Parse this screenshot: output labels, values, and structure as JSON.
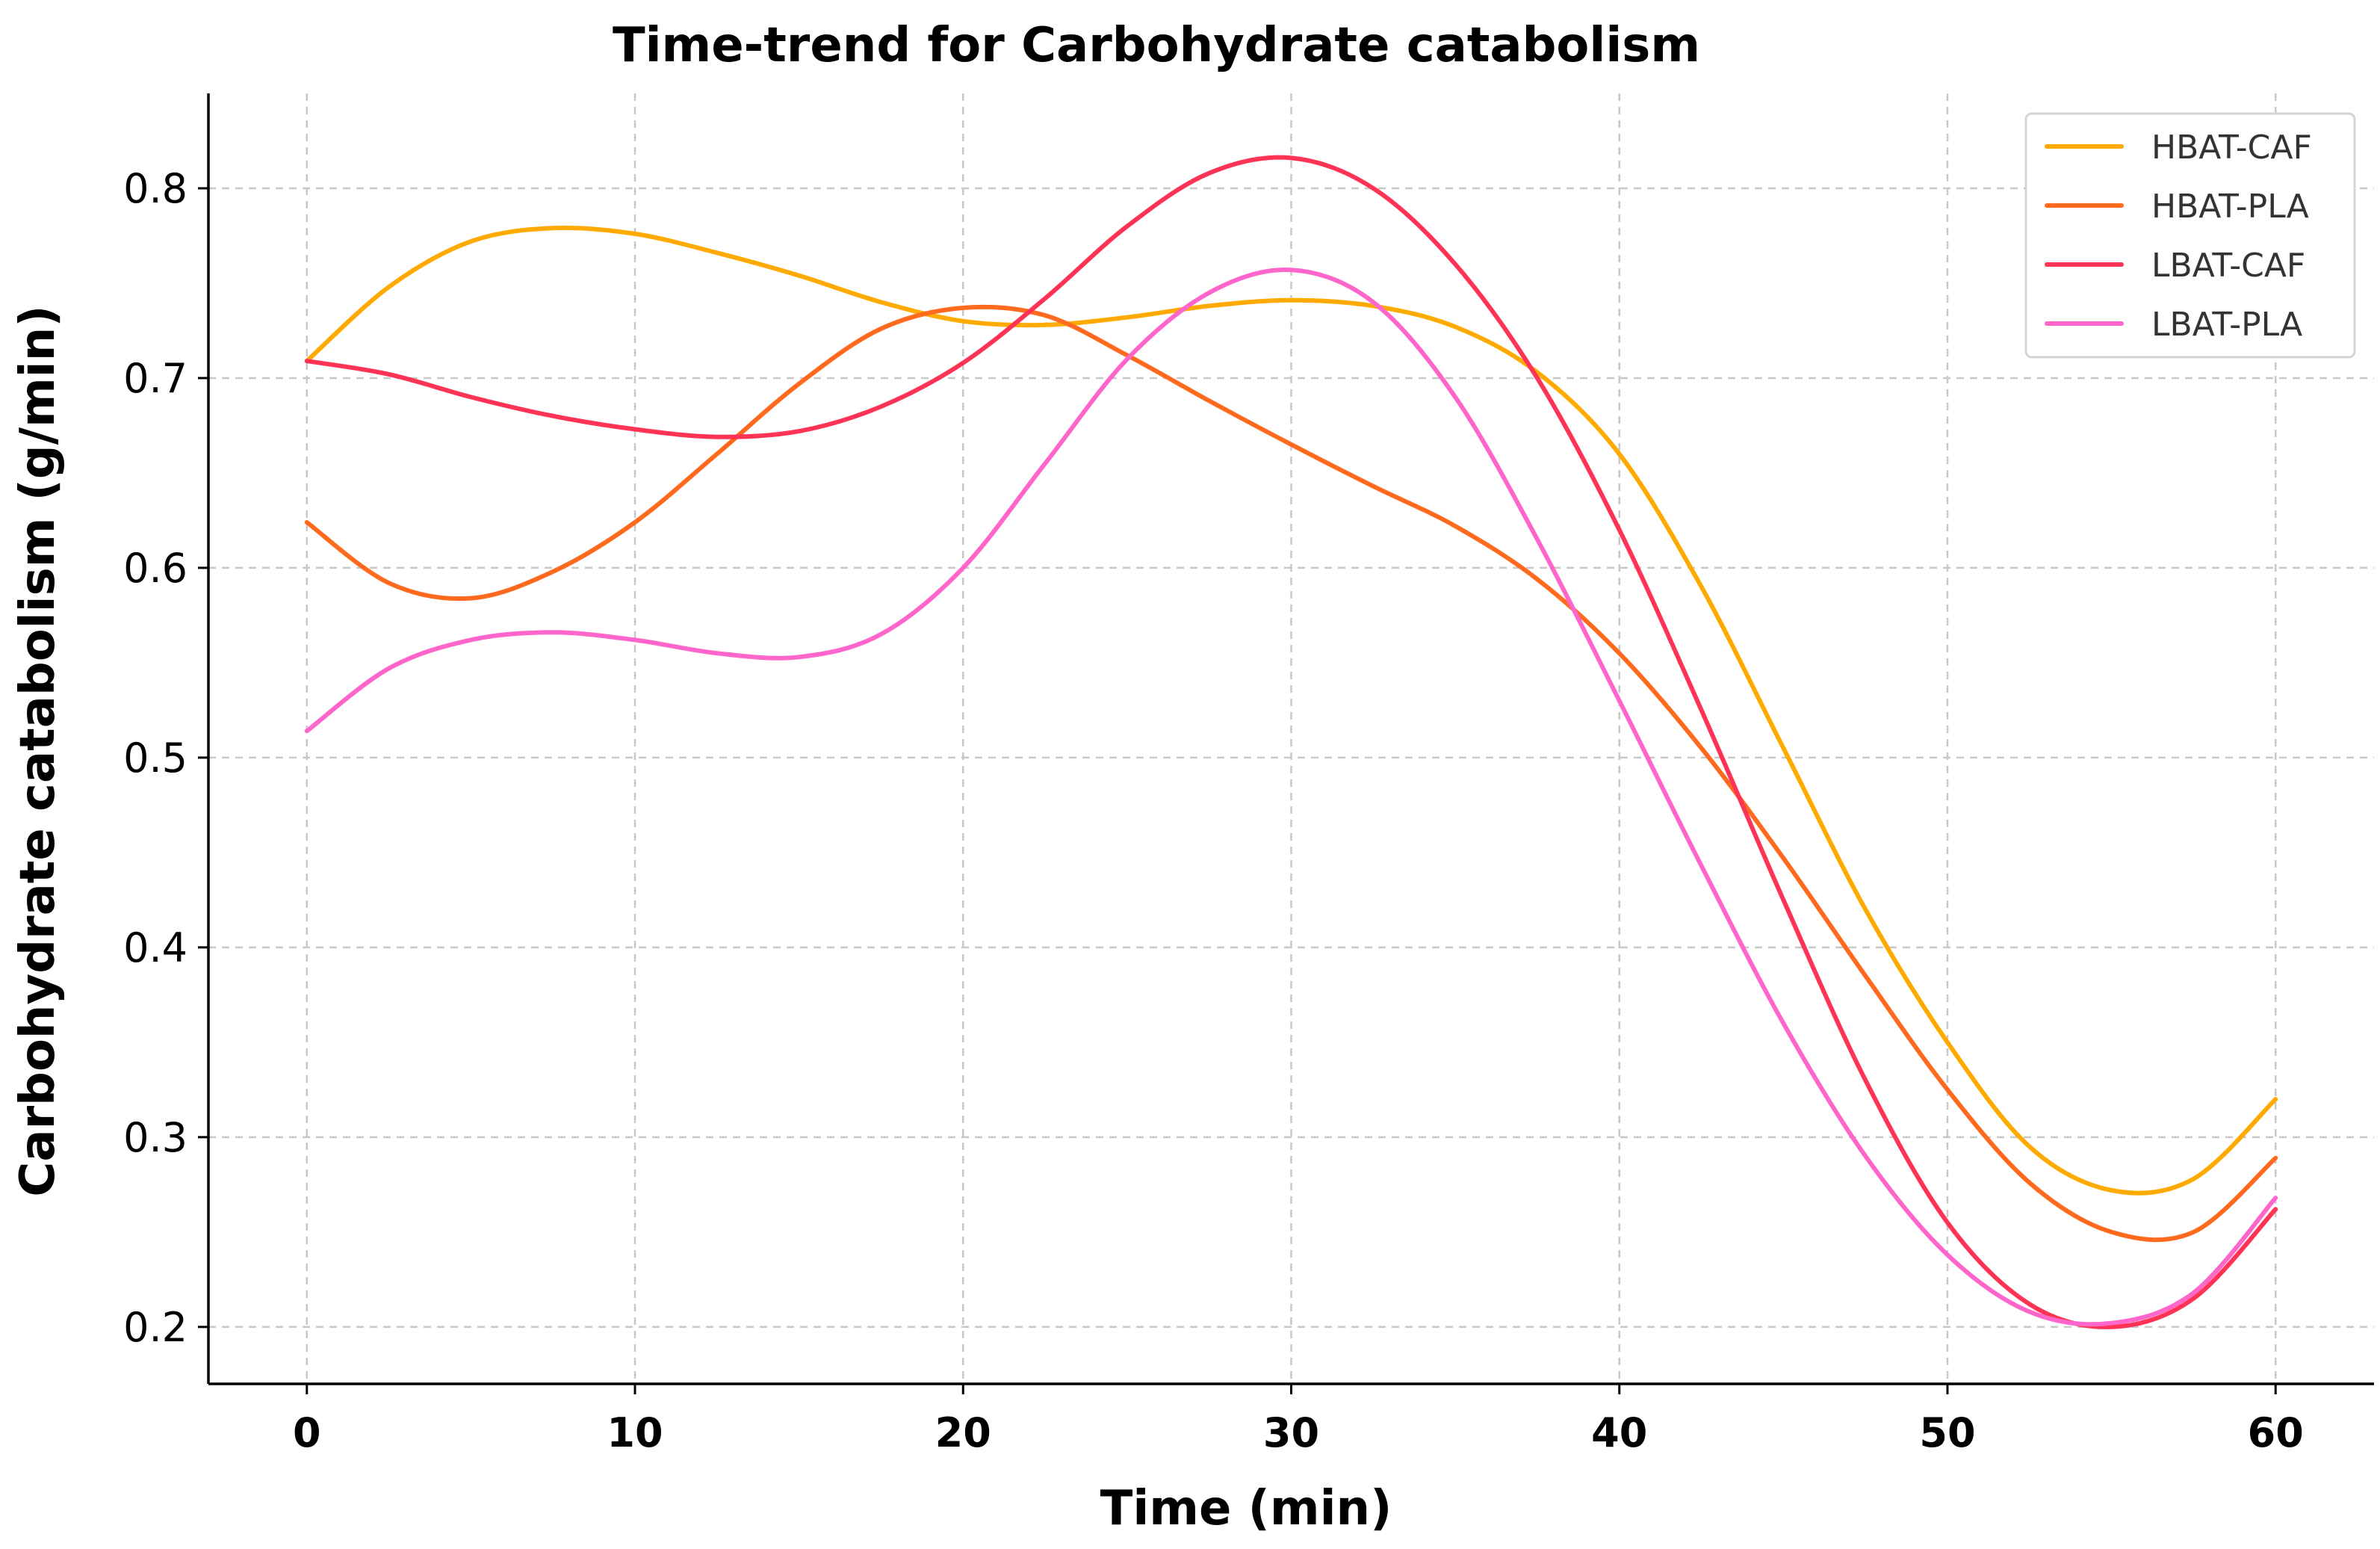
{
  "chart_data": {
    "type": "line",
    "title": "Time-trend for Carbohydrate catabolism",
    "xlabel": "Time (min)",
    "ylabel": "Carbohydrate catabolism (g/min)",
    "xlim": [
      -3,
      63
    ],
    "ylim": [
      0.17,
      0.85
    ],
    "xticks": [
      0,
      10,
      20,
      30,
      40,
      50,
      60
    ],
    "yticks": [
      0.2,
      0.3,
      0.4,
      0.5,
      0.6,
      0.7,
      0.8
    ],
    "grid": true,
    "legend_position": "top-right",
    "series": [
      {
        "name": "HBAT-CAF",
        "color": "#FFAA00",
        "x": [
          0,
          2.5,
          5,
          7.5,
          10,
          12.5,
          15,
          17.5,
          20,
          22.5,
          25,
          27.5,
          30,
          32.5,
          35,
          37.5,
          40,
          42.5,
          45,
          47.5,
          50,
          52.5,
          55,
          57.5,
          60
        ],
        "y": [
          0.709,
          0.748,
          0.772,
          0.779,
          0.776,
          0.766,
          0.754,
          0.74,
          0.73,
          0.728,
          0.732,
          0.738,
          0.741,
          0.738,
          0.727,
          0.703,
          0.66,
          0.59,
          0.505,
          0.42,
          0.35,
          0.295,
          0.272,
          0.278,
          0.32
        ]
      },
      {
        "name": "HBAT-PLA",
        "color": "#FF6A1E",
        "x": [
          0,
          2.5,
          5,
          7.5,
          10,
          12.5,
          15,
          17.5,
          20,
          22.5,
          25,
          27.5,
          30,
          32.5,
          35,
          37.5,
          40,
          42.5,
          45,
          47.5,
          50,
          52.5,
          55,
          57.5,
          60
        ],
        "y": [
          0.624,
          0.592,
          0.584,
          0.598,
          0.624,
          0.66,
          0.697,
          0.726,
          0.737,
          0.733,
          0.712,
          0.688,
          0.665,
          0.643,
          0.622,
          0.594,
          0.555,
          0.505,
          0.447,
          0.385,
          0.325,
          0.276,
          0.25,
          0.25,
          0.289
        ]
      },
      {
        "name": "LBAT-CAF",
        "color": "#FF3355",
        "x": [
          0,
          2.5,
          5,
          7.5,
          10,
          12.5,
          15,
          17.5,
          20,
          22.5,
          25,
          27.5,
          30,
          32.5,
          35,
          37.5,
          40,
          42.5,
          45,
          47.5,
          50,
          52.5,
          55,
          57.5,
          60
        ],
        "y": [
          0.709,
          0.702,
          0.69,
          0.68,
          0.673,
          0.669,
          0.672,
          0.685,
          0.708,
          0.742,
          0.78,
          0.808,
          0.816,
          0.8,
          0.76,
          0.7,
          0.62,
          0.525,
          0.425,
          0.33,
          0.255,
          0.212,
          0.2,
          0.215,
          0.262
        ]
      },
      {
        "name": "LBAT-PLA",
        "color": "#FF66CC",
        "x": [
          0,
          2.5,
          5,
          7.5,
          10,
          12.5,
          15,
          17.5,
          20,
          22.5,
          25,
          27.5,
          30,
          32.5,
          35,
          37.5,
          40,
          42.5,
          45,
          47.5,
          50,
          52.5,
          55,
          57.5,
          60
        ],
        "y": [
          0.514,
          0.547,
          0.562,
          0.566,
          0.562,
          0.555,
          0.553,
          0.565,
          0.6,
          0.655,
          0.71,
          0.745,
          0.757,
          0.74,
          0.69,
          0.615,
          0.53,
          0.443,
          0.36,
          0.29,
          0.238,
          0.208,
          0.202,
          0.218,
          0.268
        ]
      }
    ]
  }
}
